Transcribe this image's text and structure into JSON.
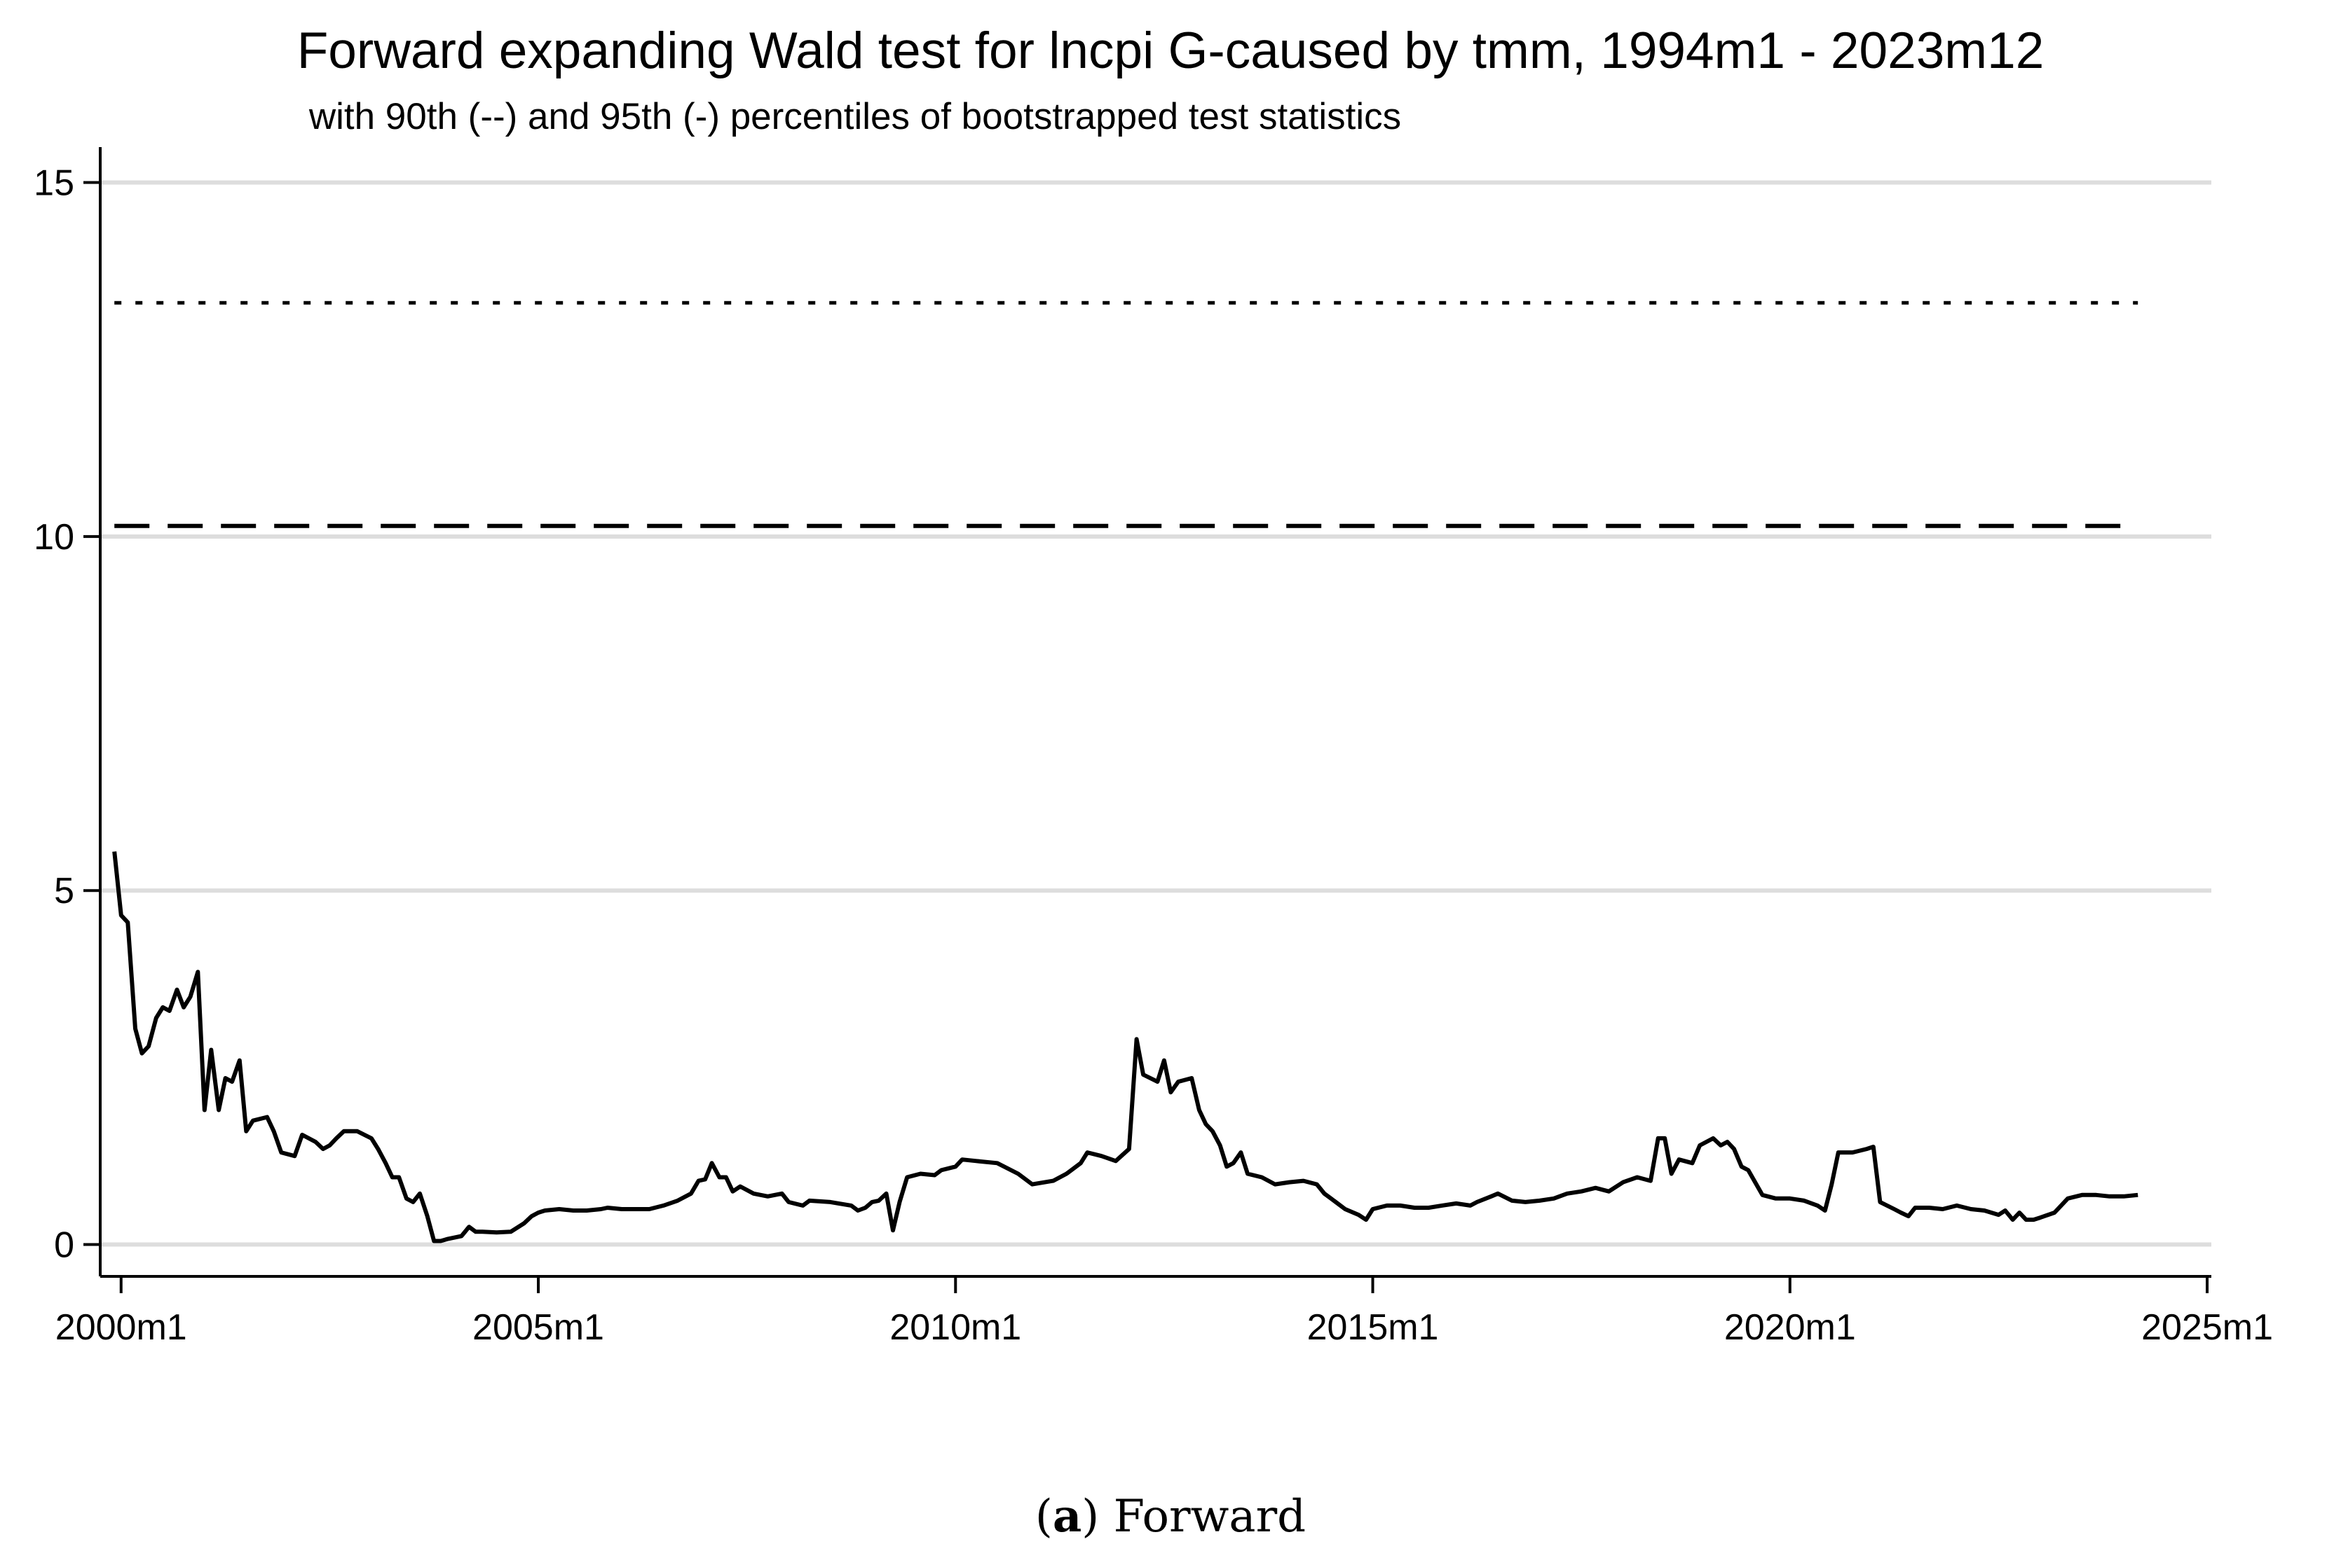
{
  "chart_data": {
    "type": "line",
    "title": "Forward expanding Wald test for lncpi G-caused by tmm, 1994m1 - 2023m12",
    "subtitle": "with 90th (--) and 95th (-) percentiles of bootstrapped test statistics",
    "xlabel": "",
    "ylabel": "",
    "x_unit": "year (monthly)",
    "xlim": [
      1999.75,
      2025.05
    ],
    "ylim": [
      -0.45,
      15.5
    ],
    "x_ticks": [
      {
        "value": 2000,
        "label": "2000m1"
      },
      {
        "value": 2005,
        "label": "2005m1"
      },
      {
        "value": 2010,
        "label": "2010m1"
      },
      {
        "value": 2015,
        "label": "2015m1"
      },
      {
        "value": 2020,
        "label": "2020m1"
      },
      {
        "value": 2025,
        "label": "2025m1"
      }
    ],
    "y_ticks": [
      {
        "value": 0,
        "label": "0"
      },
      {
        "value": 5,
        "label": "5"
      },
      {
        "value": 10,
        "label": "10"
      },
      {
        "value": 15,
        "label": "15"
      }
    ],
    "grid": "horizontal",
    "legend": "none",
    "series": [
      {
        "style": "solid",
        "color": "#000000",
        "points": [
          [
            1999.92,
            5.55
          ],
          [
            2000.0,
            4.65
          ],
          [
            2000.08,
            4.55
          ],
          [
            2000.17,
            3.05
          ],
          [
            2000.25,
            2.7
          ],
          [
            2000.33,
            2.8
          ],
          [
            2000.42,
            3.2
          ],
          [
            2000.5,
            3.35
          ],
          [
            2000.58,
            3.3
          ],
          [
            2000.67,
            3.6
          ],
          [
            2000.75,
            3.35
          ],
          [
            2000.83,
            3.5
          ],
          [
            2000.92,
            3.85
          ],
          [
            2001.0,
            1.9
          ],
          [
            2001.08,
            2.75
          ],
          [
            2001.17,
            1.9
          ],
          [
            2001.25,
            2.35
          ],
          [
            2001.33,
            2.3
          ],
          [
            2001.42,
            2.6
          ],
          [
            2001.5,
            1.6
          ],
          [
            2001.58,
            1.75
          ],
          [
            2001.75,
            1.8
          ],
          [
            2001.83,
            1.6
          ],
          [
            2001.92,
            1.3
          ],
          [
            2002.08,
            1.25
          ],
          [
            2002.17,
            1.55
          ],
          [
            2002.33,
            1.45
          ],
          [
            2002.42,
            1.35
          ],
          [
            2002.5,
            1.4
          ],
          [
            2002.58,
            1.5
          ],
          [
            2002.67,
            1.6
          ],
          [
            2002.83,
            1.6
          ],
          [
            2003.0,
            1.5
          ],
          [
            2003.08,
            1.35
          ],
          [
            2003.17,
            1.15
          ],
          [
            2003.25,
            0.95
          ],
          [
            2003.33,
            0.95
          ],
          [
            2003.42,
            0.65
          ],
          [
            2003.5,
            0.6
          ],
          [
            2003.58,
            0.72
          ],
          [
            2003.67,
            0.4
          ],
          [
            2003.75,
            0.05
          ],
          [
            2003.83,
            0.05
          ],
          [
            2003.92,
            0.08
          ],
          [
            2004.0,
            0.1
          ],
          [
            2004.08,
            0.12
          ],
          [
            2004.17,
            0.25
          ],
          [
            2004.25,
            0.18
          ],
          [
            2004.33,
            0.18
          ],
          [
            2004.5,
            0.17
          ],
          [
            2004.67,
            0.18
          ],
          [
            2004.83,
            0.3
          ],
          [
            2004.92,
            0.4
          ],
          [
            2005.0,
            0.45
          ],
          [
            2005.08,
            0.48
          ],
          [
            2005.25,
            0.5
          ],
          [
            2005.42,
            0.48
          ],
          [
            2005.58,
            0.48
          ],
          [
            2005.75,
            0.5
          ],
          [
            2005.83,
            0.52
          ],
          [
            2006.0,
            0.5
          ],
          [
            2006.17,
            0.5
          ],
          [
            2006.33,
            0.5
          ],
          [
            2006.5,
            0.55
          ],
          [
            2006.67,
            0.62
          ],
          [
            2006.83,
            0.72
          ],
          [
            2006.92,
            0.9
          ],
          [
            2007.0,
            0.92
          ],
          [
            2007.08,
            1.15
          ],
          [
            2007.17,
            0.95
          ],
          [
            2007.25,
            0.95
          ],
          [
            2007.33,
            0.75
          ],
          [
            2007.42,
            0.82
          ],
          [
            2007.58,
            0.72
          ],
          [
            2007.75,
            0.68
          ],
          [
            2007.92,
            0.72
          ],
          [
            2008.0,
            0.6
          ],
          [
            2008.17,
            0.55
          ],
          [
            2008.25,
            0.62
          ],
          [
            2008.5,
            0.6
          ],
          [
            2008.75,
            0.55
          ],
          [
            2008.83,
            0.48
          ],
          [
            2008.92,
            0.52
          ],
          [
            2009.0,
            0.6
          ],
          [
            2009.08,
            0.62
          ],
          [
            2009.17,
            0.72
          ],
          [
            2009.25,
            0.2
          ],
          [
            2009.33,
            0.6
          ],
          [
            2009.42,
            0.95
          ],
          [
            2009.58,
            1.0
          ],
          [
            2009.75,
            0.98
          ],
          [
            2009.83,
            1.05
          ],
          [
            2010.0,
            1.1
          ],
          [
            2010.08,
            1.2
          ],
          [
            2010.25,
            1.18
          ],
          [
            2010.5,
            1.15
          ],
          [
            2010.75,
            1.0
          ],
          [
            2010.92,
            0.85
          ],
          [
            2011.17,
            0.9
          ],
          [
            2011.33,
            1.0
          ],
          [
            2011.5,
            1.15
          ],
          [
            2011.58,
            1.3
          ],
          [
            2011.75,
            1.25
          ],
          [
            2011.92,
            1.18
          ],
          [
            2012.08,
            1.35
          ],
          [
            2012.17,
            2.9
          ],
          [
            2012.25,
            2.4
          ],
          [
            2012.42,
            2.3
          ],
          [
            2012.5,
            2.6
          ],
          [
            2012.58,
            2.15
          ],
          [
            2012.67,
            2.3
          ],
          [
            2012.83,
            2.35
          ],
          [
            2012.92,
            1.9
          ],
          [
            2013.0,
            1.7
          ],
          [
            2013.08,
            1.6
          ],
          [
            2013.17,
            1.4
          ],
          [
            2013.25,
            1.1
          ],
          [
            2013.33,
            1.15
          ],
          [
            2013.42,
            1.3
          ],
          [
            2013.5,
            1.0
          ],
          [
            2013.67,
            0.95
          ],
          [
            2013.83,
            0.85
          ],
          [
            2014.0,
            0.88
          ],
          [
            2014.17,
            0.9
          ],
          [
            2014.33,
            0.85
          ],
          [
            2014.42,
            0.72
          ],
          [
            2014.5,
            0.65
          ],
          [
            2014.67,
            0.5
          ],
          [
            2014.83,
            0.42
          ],
          [
            2014.92,
            0.35
          ],
          [
            2015.0,
            0.5
          ],
          [
            2015.17,
            0.55
          ],
          [
            2015.33,
            0.55
          ],
          [
            2015.5,
            0.52
          ],
          [
            2015.67,
            0.52
          ],
          [
            2015.83,
            0.55
          ],
          [
            2016.0,
            0.58
          ],
          [
            2016.17,
            0.55
          ],
          [
            2016.25,
            0.6
          ],
          [
            2016.42,
            0.68
          ],
          [
            2016.5,
            0.72
          ],
          [
            2016.67,
            0.62
          ],
          [
            2016.83,
            0.6
          ],
          [
            2017.0,
            0.62
          ],
          [
            2017.17,
            0.65
          ],
          [
            2017.33,
            0.72
          ],
          [
            2017.5,
            0.75
          ],
          [
            2017.67,
            0.8
          ],
          [
            2017.83,
            0.75
          ],
          [
            2018.0,
            0.88
          ],
          [
            2018.17,
            0.95
          ],
          [
            2018.33,
            0.9
          ],
          [
            2018.42,
            1.5
          ],
          [
            2018.5,
            1.5
          ],
          [
            2018.58,
            1.0
          ],
          [
            2018.67,
            1.2
          ],
          [
            2018.83,
            1.15
          ],
          [
            2018.92,
            1.4
          ],
          [
            2019.08,
            1.5
          ],
          [
            2019.17,
            1.4
          ],
          [
            2019.25,
            1.45
          ],
          [
            2019.33,
            1.35
          ],
          [
            2019.42,
            1.1
          ],
          [
            2019.5,
            1.05
          ],
          [
            2019.67,
            0.7
          ],
          [
            2019.83,
            0.65
          ],
          [
            2020.0,
            0.65
          ],
          [
            2020.17,
            0.62
          ],
          [
            2020.33,
            0.55
          ],
          [
            2020.42,
            0.48
          ],
          [
            2020.5,
            0.85
          ],
          [
            2020.58,
            1.3
          ],
          [
            2020.75,
            1.3
          ],
          [
            2020.92,
            1.35
          ],
          [
            2021.0,
            1.38
          ],
          [
            2021.08,
            0.6
          ],
          [
            2021.25,
            0.5
          ],
          [
            2021.33,
            0.45
          ],
          [
            2021.42,
            0.4
          ],
          [
            2021.5,
            0.52
          ],
          [
            2021.67,
            0.52
          ],
          [
            2021.83,
            0.5
          ],
          [
            2022.0,
            0.55
          ],
          [
            2022.17,
            0.5
          ],
          [
            2022.33,
            0.48
          ],
          [
            2022.5,
            0.42
          ],
          [
            2022.58,
            0.48
          ],
          [
            2022.67,
            0.35
          ],
          [
            2022.75,
            0.45
          ],
          [
            2022.83,
            0.35
          ],
          [
            2022.92,
            0.35
          ],
          [
            2023.0,
            0.38
          ],
          [
            2023.17,
            0.45
          ],
          [
            2023.25,
            0.55
          ],
          [
            2023.33,
            0.65
          ],
          [
            2023.5,
            0.7
          ],
          [
            2023.67,
            0.7
          ],
          [
            2023.83,
            0.68
          ],
          [
            2024.0,
            0.68
          ],
          [
            2024.17,
            0.7
          ]
        ]
      },
      {
        "style": "dashed",
        "color": "#000000",
        "points": [
          [
            1999.92,
            10.15
          ],
          [
            2024.17,
            10.15
          ]
        ]
      },
      {
        "style": "dotted",
        "color": "#000000",
        "points": [
          [
            1999.92,
            13.3
          ],
          [
            2024.17,
            13.3
          ]
        ]
      }
    ]
  },
  "caption": {
    "letter": "a",
    "text": "Forward"
  }
}
